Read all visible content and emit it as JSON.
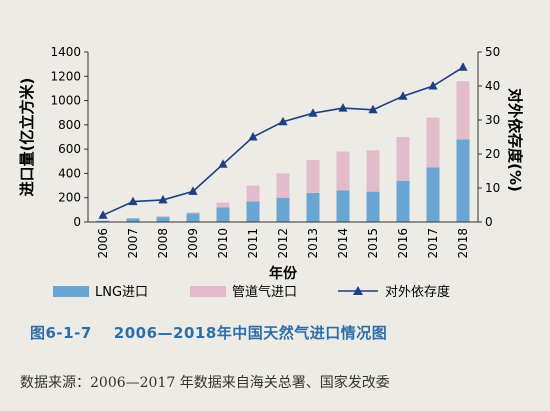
{
  "chart_data": {
    "type": "bar",
    "stacked": true,
    "categories": [
      "2006",
      "2007",
      "2008",
      "2009",
      "2010",
      "2011",
      "2012",
      "2013",
      "2014",
      "2015",
      "2016",
      "2017",
      "2018"
    ],
    "series": [
      {
        "name": "LNG进口",
        "axis": "left",
        "color": "#6aa6d3",
        "values": [
          10,
          30,
          40,
          70,
          120,
          170,
          200,
          240,
          260,
          250,
          340,
          450,
          680
        ]
      },
      {
        "name": "管道气进口",
        "axis": "left",
        "color": "#e2bccb",
        "values": [
          0,
          0,
          10,
          10,
          40,
          130,
          200,
          270,
          320,
          340,
          360,
          410,
          480
        ]
      },
      {
        "name": "对外依存度",
        "axis": "right",
        "type": "line",
        "color": "#1f3f82",
        "values": [
          2,
          6,
          6.5,
          9,
          17,
          25,
          29.5,
          32,
          33.5,
          33,
          37,
          40,
          45.5
        ]
      }
    ],
    "xlabel": "年份",
    "ylabel": "进口量(亿立方米)",
    "y2label": "对外依存度(%)",
    "ylim": [
      0,
      1400
    ],
    "y2lim": [
      0,
      50
    ],
    "yticks": [
      0,
      200,
      400,
      600,
      800,
      1000,
      1200,
      1400
    ],
    "y2ticks": [
      0,
      10,
      20,
      30,
      40,
      50
    ],
    "legend_position": "bottom",
    "grid": false
  },
  "caption": {
    "number": "图6-1-7",
    "title": "2006—2018年中国天然气进口情况图"
  },
  "source_note": "数据来源：2006—2017 年数据来自海关总署、国家发改委"
}
